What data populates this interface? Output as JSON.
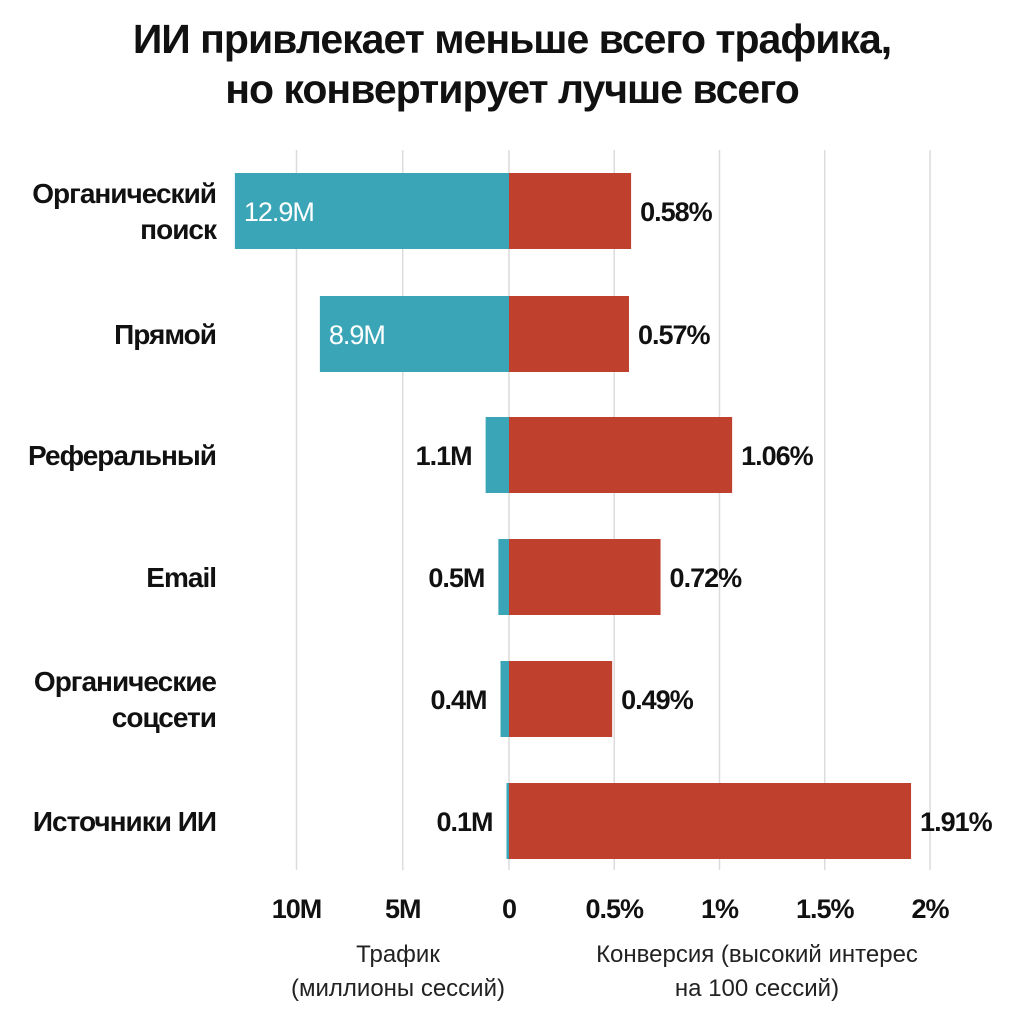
{
  "title": {
    "line1": "ИИ привлекает меньше всего трафика,",
    "line2": "но конвертирует лучше всего"
  },
  "colors": {
    "traffic": "#3aa5b6",
    "conversion": "#c0402e",
    "grid": "#dcdcdc",
    "text": "#111111"
  },
  "chart_data": {
    "type": "bar",
    "orientation": "horizontal-diverging",
    "categories": [
      [
        "Органический",
        "поиск"
      ],
      [
        "Прямой"
      ],
      [
        "Реферальный"
      ],
      [
        "Email"
      ],
      [
        "Органические",
        "соцсети"
      ],
      [
        "Источники ИИ"
      ]
    ],
    "series": [
      {
        "name": "Трафик",
        "side": "left",
        "values": [
          12.9,
          8.9,
          1.1,
          0.5,
          0.4,
          0.1
        ],
        "labels": [
          "12.9M",
          "8.9M",
          "1.1M",
          "0.5M",
          "0.4M",
          "0.1M"
        ]
      },
      {
        "name": "Конверсия",
        "side": "right",
        "values": [
          0.58,
          0.57,
          1.06,
          0.72,
          0.49,
          1.91
        ],
        "labels": [
          "0.58%",
          "0.57%",
          "1.06%",
          "0.72%",
          "0.49%",
          "1.91%"
        ]
      }
    ],
    "left_axis": {
      "range": [
        0,
        10
      ],
      "ticks": [
        10,
        5,
        0
      ],
      "tick_labels": [
        "10M",
        "5M",
        "0"
      ],
      "label": [
        "Трафик",
        "(миллионы сессий)"
      ]
    },
    "right_axis": {
      "range": [
        0,
        2
      ],
      "ticks": [
        0.5,
        1,
        1.5,
        2
      ],
      "tick_labels": [
        "0.5%",
        "1%",
        "1.5%",
        "2%"
      ],
      "label": [
        "Конверсия (высокий интерес",
        "на 100 сессий)"
      ]
    },
    "grid": true
  }
}
